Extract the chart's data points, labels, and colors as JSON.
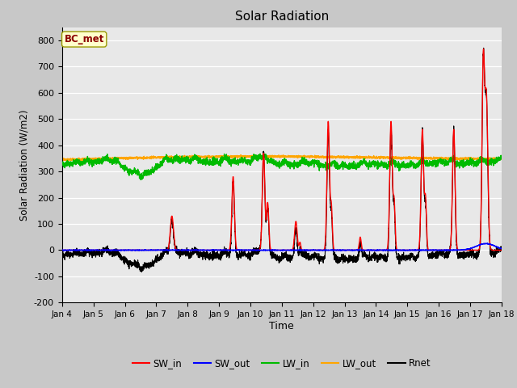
{
  "title": "Solar Radiation",
  "xlabel": "Time",
  "ylabel": "Solar Radiation (W/m2)",
  "ylim": [
    -200,
    850
  ],
  "yticks": [
    -200,
    -100,
    0,
    100,
    200,
    300,
    400,
    500,
    600,
    700,
    800
  ],
  "x_labels": [
    "Jan 4",
    "Jan 5",
    "Jan 6",
    "Jan 7",
    "Jan 8",
    "Jan 9",
    "Jan 10",
    "Jan 11",
    "Jan 12",
    "Jan 13",
    "Jan 14",
    "Jan 15",
    "Jan 16",
    "Jan 17",
    "Jan 18"
  ],
  "annotation_text": "BC_met",
  "annotation_color": "#8B0000",
  "annotation_bg": "#FFFFCC",
  "legend_entries": [
    "SW_in",
    "SW_out",
    "LW_in",
    "LW_out",
    "Rnet"
  ],
  "colors": {
    "SW_in": "#FF0000",
    "SW_out": "#0000FF",
    "LW_in": "#00BB00",
    "LW_out": "#FFA500",
    "Rnet": "#000000"
  },
  "fig_bg": "#C8C8C8",
  "plot_bg": "#E8E8E8"
}
